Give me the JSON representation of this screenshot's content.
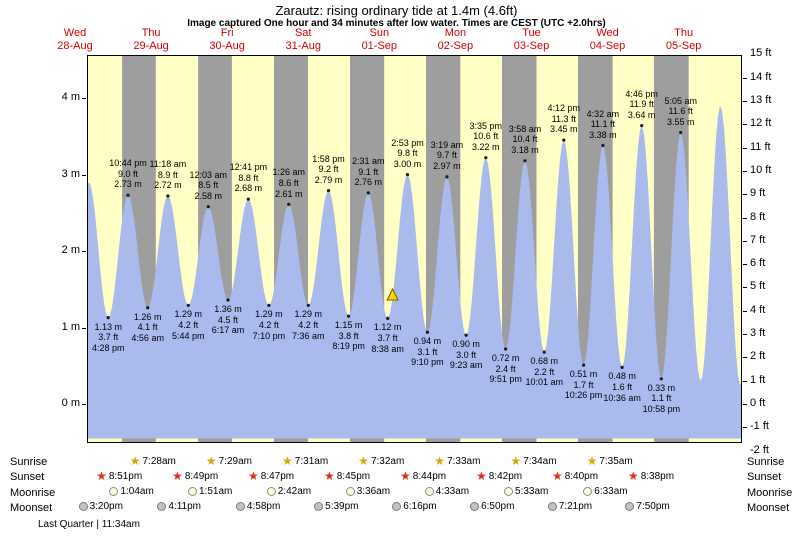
{
  "header": {
    "title": "Zarautz: rising  ordinary tide at 1.4m (4.6ft)",
    "subtitle": "Image captured One hour and 34 minutes after low water. Times are CEST (UTC +2.0hrs)"
  },
  "colors": {
    "chart_bg": "#ffffc6",
    "night_band": "#9e9e9e",
    "tide_fill": "#a9baec",
    "day_label": "#d40000",
    "marker_fill": "#ffd700",
    "marker_stroke": "#7a5c00",
    "sunrise_star": "#d4a800",
    "sunset_star": "#dc2f1e",
    "moonrise_fill": "#ffffd6",
    "moonset_fill": "#c2c2c2"
  },
  "axes": {
    "meters": [
      0,
      1,
      2,
      3,
      4
    ],
    "feet": [
      15,
      14,
      13,
      12,
      11,
      10,
      9,
      8,
      7,
      6,
      5,
      4,
      3,
      2,
      1,
      0,
      -1,
      -2
    ],
    "meter_unit": "m",
    "feet_unit": "ft"
  },
  "chart_data": {
    "type": "area",
    "title": "Zarautz tide height, Wed 28-Aug to Thu 05-Sep",
    "x_unit": "hours since Wed 28-Aug 00:00 CEST",
    "y_unit_left": "m",
    "y_unit_right": "ft",
    "y_range_m": [
      -0.5,
      4.55
    ],
    "y_range_ft": [
      -2,
      15
    ],
    "days": [
      {
        "label": "Wed",
        "date": "28-Aug"
      },
      {
        "label": "Thu",
        "date": "29-Aug"
      },
      {
        "label": "Fri",
        "date": "30-Aug"
      },
      {
        "label": "Sat",
        "date": "31-Aug"
      },
      {
        "label": "Sun",
        "date": "01-Sep"
      },
      {
        "label": "Mon",
        "date": "02-Sep"
      },
      {
        "label": "Tue",
        "date": "03-Sep"
      },
      {
        "label": "Wed",
        "date": "04-Sep"
      },
      {
        "label": "Thu",
        "date": "05-Sep"
      }
    ],
    "extremes": [
      {
        "type": "low",
        "t": 4.1,
        "height_m": 1.05,
        "labeled": false
      },
      {
        "type": "high",
        "t": 10.33,
        "height_m": 2.9,
        "labeled": false
      },
      {
        "type": "low",
        "t": 16.47,
        "height_m": 1.13,
        "height_ft": 3.7,
        "time": "4:28 pm",
        "day": "Wed 28-Aug",
        "labeled": true
      },
      {
        "type": "high",
        "t": 22.73,
        "height_m": 2.73,
        "height_ft": 9.0,
        "time": "10:44 pm",
        "day": "Wed 28-Aug",
        "labeled": true
      },
      {
        "type": "low",
        "t": 28.93,
        "height_m": 1.26,
        "height_ft": 4.1,
        "time": "4:56 am",
        "day": "Thu 29-Aug",
        "labeled": true
      },
      {
        "type": "high",
        "t": 35.3,
        "height_m": 2.72,
        "height_ft": 8.9,
        "time": "11:18 am",
        "day": "Thu 29-Aug",
        "labeled": true
      },
      {
        "type": "low",
        "t": 41.73,
        "height_m": 1.29,
        "height_ft": 4.2,
        "time": "5:44 pm",
        "day": "Thu 29-Aug",
        "labeled": true
      },
      {
        "type": "high",
        "t": 48.05,
        "height_m": 2.58,
        "height_ft": 8.5,
        "time": "12:03 am",
        "day": "Fri 30-Aug",
        "labeled": true
      },
      {
        "type": "low",
        "t": 54.28,
        "height_m": 1.36,
        "height_ft": 4.5,
        "time": "6:17 am",
        "day": "Fri 30-Aug",
        "labeled": true
      },
      {
        "type": "high",
        "t": 60.68,
        "height_m": 2.68,
        "height_ft": 8.8,
        "time": "12:41 pm",
        "day": "Fri 30-Aug",
        "labeled": true
      },
      {
        "type": "low",
        "t": 67.17,
        "height_m": 1.29,
        "height_ft": 4.2,
        "time": "7:10 pm",
        "day": "Fri 30-Aug",
        "labeled": true
      },
      {
        "type": "high",
        "t": 73.43,
        "height_m": 2.61,
        "height_ft": 8.6,
        "time": "1:26 am",
        "day": "Sat 31-Aug",
        "labeled": true
      },
      {
        "type": "low",
        "t": 79.6,
        "height_m": 1.29,
        "height_ft": 4.2,
        "time": "7:36 am",
        "day": "Sat 31-Aug",
        "labeled": true
      },
      {
        "type": "high",
        "t": 85.97,
        "height_m": 2.79,
        "height_ft": 9.2,
        "time": "1:58 pm",
        "day": "Sat 31-Aug",
        "labeled": true
      },
      {
        "type": "low",
        "t": 92.32,
        "height_m": 1.15,
        "height_ft": 3.8,
        "time": "8:19 pm",
        "day": "Sat 31-Aug",
        "labeled": true
      },
      {
        "type": "high",
        "t": 98.52,
        "height_m": 2.76,
        "height_ft": 9.1,
        "time": "2:31 am",
        "day": "Sun 01-Sep",
        "labeled": true
      },
      {
        "type": "low",
        "t": 104.63,
        "height_m": 1.12,
        "height_ft": 3.7,
        "time": "8:38 am",
        "day": "Sun 01-Sep",
        "labeled": true
      },
      {
        "type": "high",
        "t": 110.88,
        "height_m": 3.0,
        "height_ft": 9.8,
        "time": "2:53 pm",
        "day": "Sun 01-Sep",
        "labeled": true
      },
      {
        "type": "low",
        "t": 117.17,
        "height_m": 0.94,
        "height_ft": 3.1,
        "time": "9:10 pm",
        "day": "Sun 01-Sep",
        "labeled": true
      },
      {
        "type": "high",
        "t": 123.32,
        "height_m": 2.97,
        "height_ft": 9.7,
        "time": "3:19 am",
        "day": "Mon 02-Sep",
        "labeled": true
      },
      {
        "type": "low",
        "t": 129.38,
        "height_m": 0.9,
        "height_ft": 3.0,
        "time": "9:23 am",
        "day": "Mon 02-Sep",
        "labeled": true
      },
      {
        "type": "high",
        "t": 135.58,
        "height_m": 3.22,
        "height_ft": 10.6,
        "time": "3:35 pm",
        "day": "Mon 02-Sep",
        "labeled": true
      },
      {
        "type": "low",
        "t": 141.85,
        "height_m": 0.72,
        "height_ft": 2.4,
        "time": "9:51 pm",
        "day": "Mon 02-Sep",
        "labeled": true
      },
      {
        "type": "high",
        "t": 147.97,
        "height_m": 3.18,
        "height_ft": 10.4,
        "time": "3:58 am",
        "day": "Tue 03-Sep",
        "labeled": true
      },
      {
        "type": "low",
        "t": 154.02,
        "height_m": 0.68,
        "height_ft": 2.2,
        "time": "10:01 am",
        "day": "Tue 03-Sep",
        "labeled": true
      },
      {
        "type": "high",
        "t": 160.2,
        "height_m": 3.45,
        "height_ft": 11.3,
        "time": "4:12 pm",
        "day": "Tue 03-Sep",
        "labeled": true
      },
      {
        "type": "low",
        "t": 166.43,
        "height_m": 0.51,
        "height_ft": 1.7,
        "time": "10:26 pm",
        "day": "Tue 03-Sep",
        "labeled": true
      },
      {
        "type": "high",
        "t": 172.53,
        "height_m": 3.38,
        "height_ft": 11.1,
        "time": "4:32 am",
        "day": "Wed 04-Sep",
        "labeled": true
      },
      {
        "type": "low",
        "t": 178.6,
        "height_m": 0.48,
        "height_ft": 1.6,
        "time": "10:36 am",
        "day": "Wed 04-Sep",
        "labeled": true
      },
      {
        "type": "high",
        "t": 184.77,
        "height_m": 3.64,
        "height_ft": 11.9,
        "time": "4:46 pm",
        "day": "Wed 04-Sep",
        "labeled": true
      },
      {
        "type": "low",
        "t": 190.97,
        "height_m": 0.33,
        "height_ft": 1.1,
        "time": "10:58 pm",
        "day": "Wed 04-Sep",
        "labeled": true
      },
      {
        "type": "high",
        "t": 197.08,
        "height_m": 3.55,
        "height_ft": 11.6,
        "time": "5:05 am",
        "day": "Thu 05-Sep",
        "labeled": true
      },
      {
        "type": "low",
        "t": 203.4,
        "height_m": 0.3,
        "labeled": false
      },
      {
        "type": "high",
        "t": 209.6,
        "height_m": 3.9,
        "labeled": false
      },
      {
        "type": "low",
        "t": 215.9,
        "height_m": 0.25,
        "labeled": false
      },
      {
        "type": "high",
        "t": 221.8,
        "height_m": 3.95,
        "labeled": false
      }
    ],
    "night_bands": [
      [
        20.85,
        31.47
      ],
      [
        44.82,
        55.48
      ],
      [
        68.78,
        79.52
      ],
      [
        92.75,
        103.53
      ],
      [
        116.73,
        127.55
      ],
      [
        140.7,
        151.57
      ],
      [
        164.67,
        175.58
      ],
      [
        188.63,
        199.6
      ]
    ],
    "current_marker": {
      "t": 106.2,
      "height_m": 1.4
    }
  },
  "astro": {
    "rows": [
      {
        "id": "sunrise",
        "label": "Sunrise",
        "icon": "sunrise-star",
        "events": [
          {
            "day": 1,
            "time": "7:28am"
          },
          {
            "day": 2,
            "time": "7:29am"
          },
          {
            "day": 3,
            "time": "7:31am"
          },
          {
            "day": 4,
            "time": "7:32am"
          },
          {
            "day": 5,
            "time": "7:33am"
          },
          {
            "day": 6,
            "time": "7:34am"
          },
          {
            "day": 7,
            "time": "7:35am"
          }
        ]
      },
      {
        "id": "sunset",
        "label": "Sunset",
        "icon": "sunset-star",
        "events": [
          {
            "day": 0,
            "time": "8:51pm"
          },
          {
            "day": 1,
            "time": "8:49pm"
          },
          {
            "day": 2,
            "time": "8:47pm"
          },
          {
            "day": 3,
            "time": "8:45pm"
          },
          {
            "day": 4,
            "time": "8:44pm"
          },
          {
            "day": 5,
            "time": "8:42pm"
          },
          {
            "day": 6,
            "time": "8:40pm"
          },
          {
            "day": 7,
            "time": "8:38pm"
          }
        ]
      },
      {
        "id": "moonrise",
        "label": "Moonrise",
        "icon": "moonrise-circle",
        "events": [
          {
            "day": 1,
            "time": "1:04am"
          },
          {
            "day": 2,
            "time": "1:51am"
          },
          {
            "day": 3,
            "time": "2:42am"
          },
          {
            "day": 4,
            "time": "3:36am"
          },
          {
            "day": 5,
            "time": "4:33am"
          },
          {
            "day": 6,
            "time": "5:33am"
          },
          {
            "day": 7,
            "time": "6:33am"
          }
        ]
      },
      {
        "id": "moonset",
        "label": "Moonset",
        "icon": "moonset-circle",
        "events": [
          {
            "day": 0,
            "time": "3:20pm"
          },
          {
            "day": 1,
            "time": "4:11pm"
          },
          {
            "day": 2,
            "time": "4:58pm"
          },
          {
            "day": 3,
            "time": "5:39pm"
          },
          {
            "day": 4,
            "time": "6:16pm"
          },
          {
            "day": 5,
            "time": "6:50pm"
          },
          {
            "day": 6,
            "time": "7:21pm"
          },
          {
            "day": 7,
            "time": "7:50pm"
          }
        ]
      }
    ],
    "moon_phase": "Last Quarter | 11:34am"
  }
}
